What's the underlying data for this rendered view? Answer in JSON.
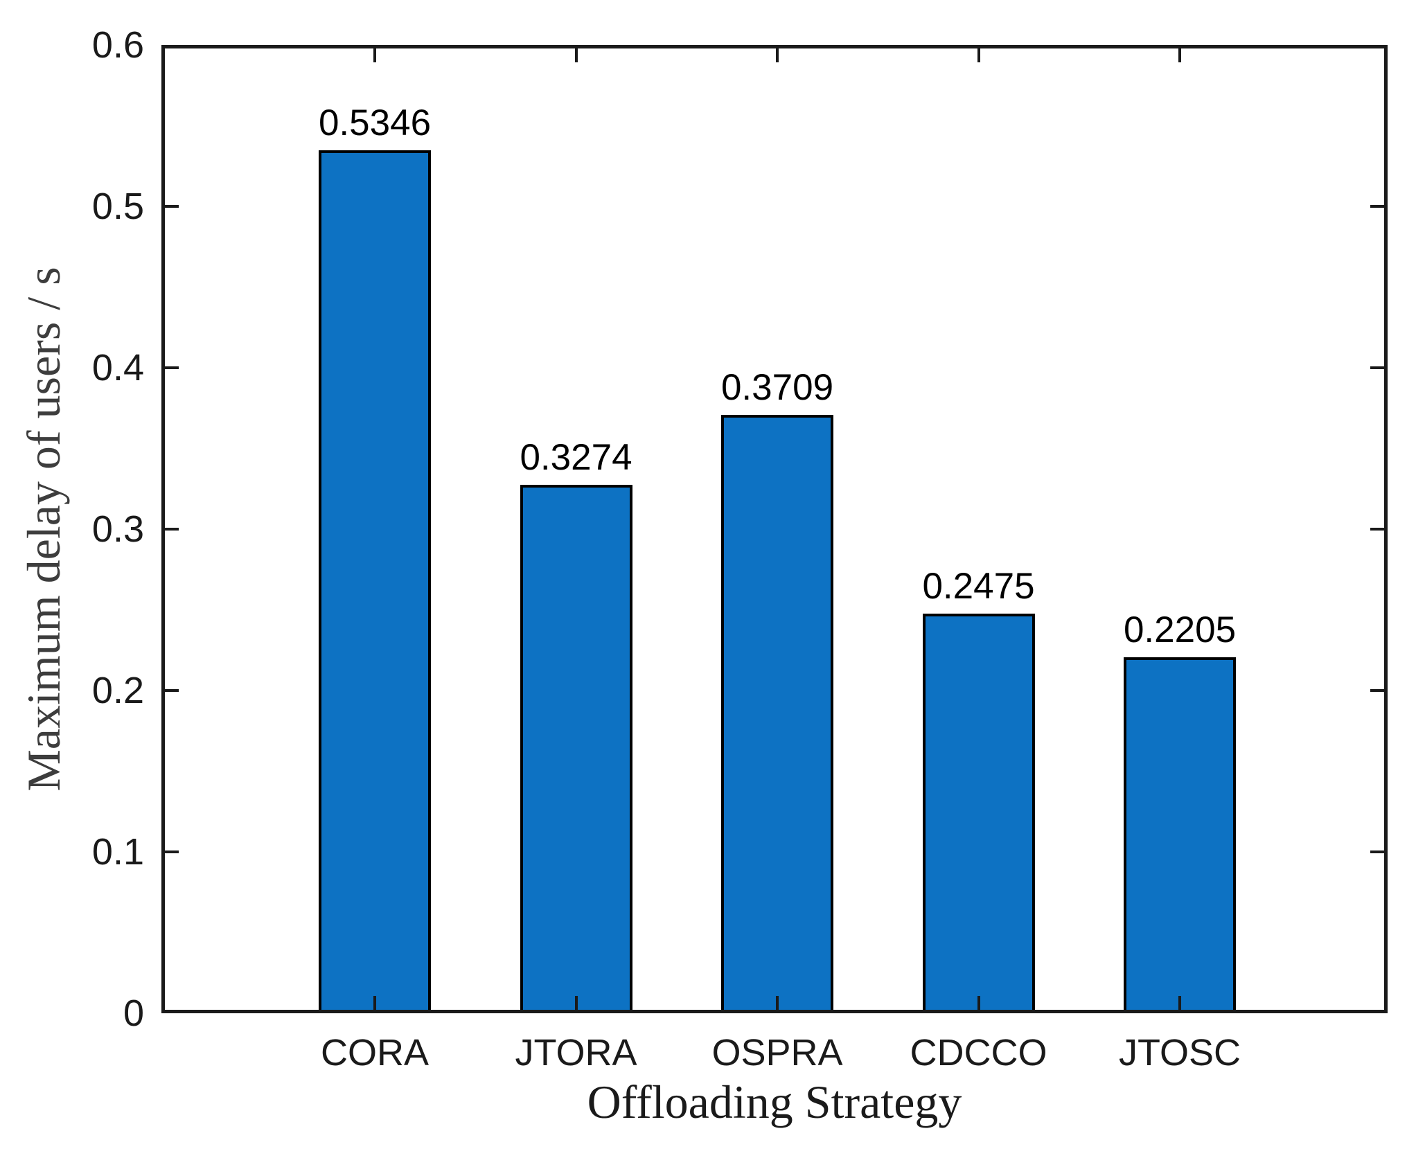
{
  "figure": {
    "background_color": "#ffffff",
    "axis_color": "#1a1a1a",
    "xlabel_color": "#1a1a1a",
    "ylabel_color": "#3d3d3d"
  },
  "chart_data": {
    "type": "bar",
    "title": "",
    "xlabel": "Offloading Strategy",
    "ylabel": "Maximum delay of users / s",
    "categories": [
      "CORA",
      "JTORA",
      "OSPRA",
      "CDCCO",
      "JTOSC"
    ],
    "values": [
      0.5346,
      0.3274,
      0.3709,
      0.2475,
      0.2205
    ],
    "bar_labels": [
      "0.5346",
      "0.3274",
      "0.3709",
      "0.2475",
      "0.2205"
    ],
    "ylim": [
      0,
      0.6
    ],
    "yticks": [
      0,
      0.1,
      0.2,
      0.3,
      0.4,
      0.5,
      0.6
    ],
    "ytick_labels": [
      "0",
      "0.1",
      "0.2",
      "0.3",
      "0.4",
      "0.5",
      "0.6"
    ],
    "grid": false,
    "legend": "none",
    "box": true,
    "tick_direction": "in",
    "bar_color": "#0d72c3",
    "bar_edge_color": "#000000"
  }
}
